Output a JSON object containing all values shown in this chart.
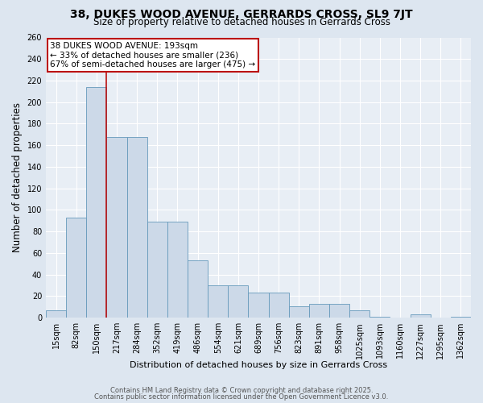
{
  "title1": "38, DUKES WOOD AVENUE, GERRARDS CROSS, SL9 7JT",
  "title2": "Size of property relative to detached houses in Gerrards Cross",
  "xlabel": "Distribution of detached houses by size in Gerrards Cross",
  "ylabel": "Number of detached properties",
  "bar_labels": [
    "15sqm",
    "82sqm",
    "150sqm",
    "217sqm",
    "284sqm",
    "352sqm",
    "419sqm",
    "486sqm",
    "554sqm",
    "621sqm",
    "689sqm",
    "756sqm",
    "823sqm",
    "891sqm",
    "958sqm",
    "1025sqm",
    "1093sqm",
    "1160sqm",
    "1227sqm",
    "1295sqm",
    "1362sqm"
  ],
  "bar_values": [
    7,
    93,
    214,
    168,
    168,
    89,
    89,
    53,
    30,
    30,
    23,
    23,
    11,
    13,
    13,
    7,
    1,
    0,
    3,
    0,
    1
  ],
  "bar_color": "#ccd9e8",
  "bar_edgecolor": "#6699bb",
  "bar_linewidth": 0.6,
  "vline_x": 2.5,
  "vline_color": "#bb1111",
  "annotation_text": "38 DUKES WOOD AVENUE: 193sqm\n← 33% of detached houses are smaller (236)\n67% of semi-detached houses are larger (475) →",
  "annotation_box_edgecolor": "#bb1111",
  "annotation_box_facecolor": "#ffffff",
  "bg_color": "#dde6f0",
  "plot_bg_color": "#e8eef5",
  "grid_color": "#ffffff",
  "ylim": [
    0,
    260
  ],
  "yticks": [
    0,
    20,
    40,
    60,
    80,
    100,
    120,
    140,
    160,
    180,
    200,
    220,
    240,
    260
  ],
  "footer1": "Contains HM Land Registry data © Crown copyright and database right 2025.",
  "footer2": "Contains public sector information licensed under the Open Government Licence v3.0.",
  "title_fontsize": 10,
  "subtitle_fontsize": 8.5,
  "tick_fontsize": 7,
  "ylabel_fontsize": 8.5,
  "xlabel_fontsize": 8,
  "annotation_fontsize": 7.5,
  "footer_fontsize": 6
}
